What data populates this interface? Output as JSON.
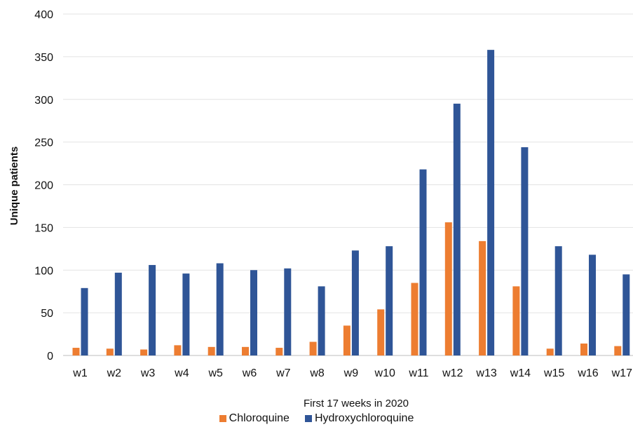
{
  "chart_data": {
    "type": "bar",
    "xlabel": "First 17 weeks in 2020",
    "ylabel": "Unique patients",
    "ylim": [
      0,
      400
    ],
    "yticks": [
      0,
      50,
      100,
      150,
      200,
      250,
      300,
      350,
      400
    ],
    "grid": true,
    "legend_position": "bottom",
    "categories": [
      "w1",
      "w2",
      "w3",
      "w4",
      "w5",
      "w6",
      "w7",
      "w8",
      "w9",
      "w10",
      "w11",
      "w12",
      "w13",
      "w14",
      "w15",
      "w16",
      "w17"
    ],
    "series": [
      {
        "name": "Chloroquine",
        "color": "#ED7D31",
        "values": [
          9,
          8,
          7,
          12,
          10,
          10,
          9,
          16,
          35,
          54,
          85,
          156,
          134,
          81,
          8,
          14,
          11
        ]
      },
      {
        "name": "Hydroxychloroquine",
        "color": "#2F5597",
        "values": [
          79,
          97,
          106,
          96,
          108,
          100,
          102,
          81,
          123,
          128,
          218,
          295,
          358,
          244,
          128,
          118,
          95
        ]
      }
    ]
  }
}
